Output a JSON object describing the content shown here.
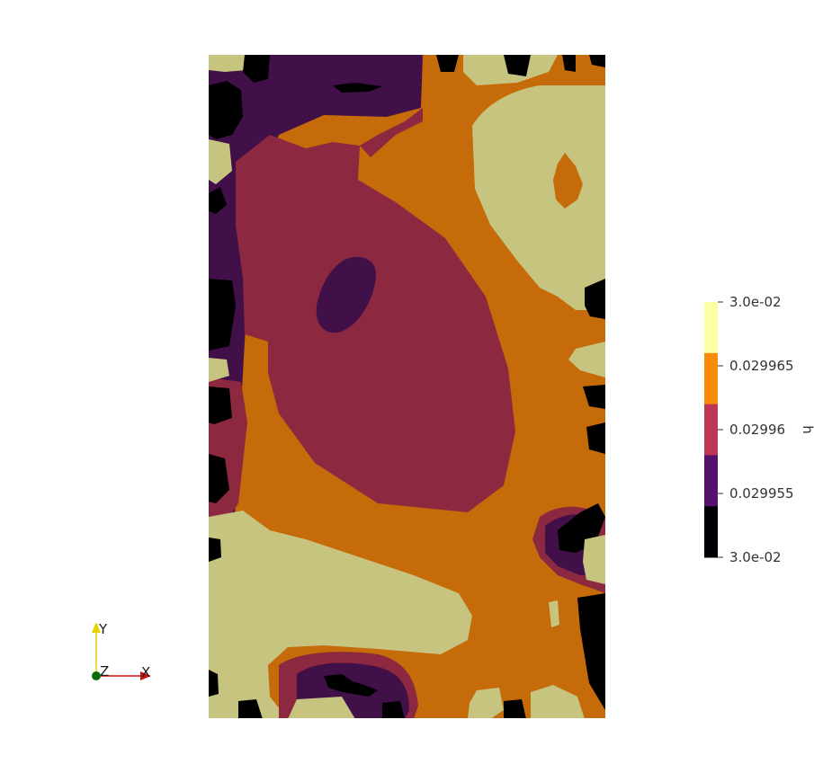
{
  "chart_data": {
    "type": "heatmap",
    "field_name": "h",
    "colormap": "inferno (banded)",
    "legend": {
      "title": "h",
      "orientation": "vertical",
      "placement": "right",
      "tick_labels": [
        "3.0e-02",
        "0.029965",
        "0.02996",
        "0.029955",
        "3.0e-02"
      ],
      "bands": [
        {
          "level": 4,
          "color": "#fcffa4"
        },
        {
          "level": 3,
          "color": "#f98c0a"
        },
        {
          "level": 2,
          "color": "#bc3754"
        },
        {
          "level": 1,
          "color": "#57106e"
        },
        {
          "level": 0,
          "color": "#000004"
        }
      ]
    },
    "shaded_colors": [
      "#000000",
      "#421049",
      "#8c2840",
      "#c56b09",
      "#c7c47f"
    ],
    "axes_triad": {
      "x_label": "X",
      "y_label": "Y",
      "z_label": "Z",
      "x_color": "#cc1111",
      "y_color": "#e6d200",
      "z_color": "#0b6b0b"
    }
  }
}
